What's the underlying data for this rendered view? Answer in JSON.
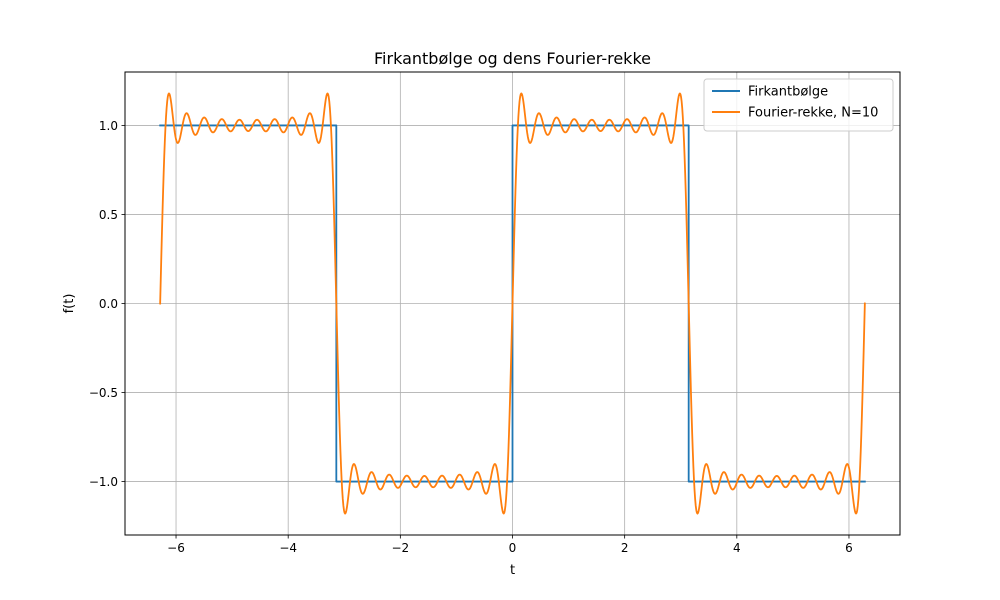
{
  "chart_data": {
    "type": "line",
    "title": "Firkantbølge og dens Fourier-rekke",
    "xlabel": "t",
    "ylabel": "f(t)",
    "xlim": [
      -6.91,
      6.91
    ],
    "ylim": [
      -1.3,
      1.3
    ],
    "xticks": [
      -6,
      -4,
      -2,
      0,
      2,
      4,
      6
    ],
    "xtick_labels": [
      "−6",
      "−4",
      "−2",
      "0",
      "2",
      "4",
      "6"
    ],
    "yticks": [
      -1.0,
      -0.5,
      0.0,
      0.5,
      1.0
    ],
    "ytick_labels": [
      "−1.0",
      "−0.5",
      "0.0",
      "0.5",
      "1.0"
    ],
    "grid": true,
    "legend_position": "top-right",
    "domain": [
      -6.2832,
      6.2832
    ],
    "series": [
      {
        "name": "Firkantbølge",
        "color": "#1f77b4",
        "kind": "square",
        "x": [
          -6.2832,
          -3.1416,
          -3.1416,
          0,
          0,
          3.1416,
          3.1416,
          6.2832
        ],
        "y": [
          1,
          1,
          -1,
          -1,
          1,
          1,
          -1,
          -1
        ]
      },
      {
        "name": "Fourier-rekke, N=10",
        "color": "#ff7f0e",
        "kind": "fourier",
        "terms": 10
      }
    ]
  }
}
